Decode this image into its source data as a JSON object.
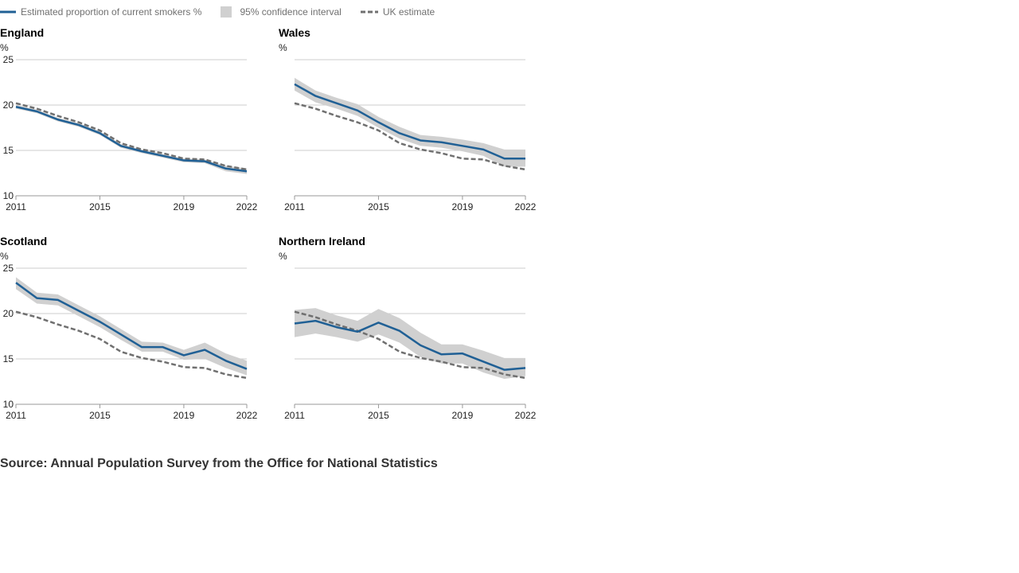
{
  "legend": {
    "estimate_label": "Estimated proportion of current smokers %",
    "ci_label": "95% confidence interval",
    "uk_label": "UK estimate"
  },
  "colors": {
    "estimate": "#206095",
    "ci": "#d0d0d0",
    "uk": "#707070",
    "grid": "#cccccc"
  },
  "source": "Source: Annual Population Survey from the Office for National Statistics",
  "chart_data": [
    {
      "type": "line",
      "title": "England",
      "ylabel": "%",
      "ylim": [
        10,
        25
      ],
      "yticks": [
        10,
        15,
        20,
        25
      ],
      "xlim": [
        2011,
        2022
      ],
      "xticks": [
        2011,
        2015,
        2019,
        2022
      ],
      "show_ytick_labels": true,
      "x": [
        2011,
        2012,
        2013,
        2014,
        2015,
        2016,
        2017,
        2018,
        2019,
        2020,
        2021,
        2022
      ],
      "series": [
        {
          "name": "Estimated proportion of current smokers %",
          "values": [
            19.8,
            19.3,
            18.4,
            17.8,
            16.9,
            15.5,
            14.9,
            14.4,
            13.9,
            13.8,
            13.0,
            12.7
          ]
        },
        {
          "name": "UK estimate",
          "values": [
            20.2,
            19.6,
            18.8,
            18.1,
            17.2,
            15.8,
            15.1,
            14.7,
            14.1,
            14.0,
            13.3,
            12.9
          ]
        }
      ],
      "ci": {
        "lower": [
          19.6,
          19.1,
          18.2,
          17.6,
          16.7,
          15.3,
          14.7,
          14.2,
          13.7,
          13.6,
          12.7,
          12.4
        ],
        "upper": [
          20.0,
          19.5,
          18.6,
          18.0,
          17.1,
          15.7,
          15.1,
          14.6,
          14.1,
          14.0,
          13.3,
          13.0
        ]
      }
    },
    {
      "type": "line",
      "title": "Wales",
      "ylabel": "%",
      "ylim": [
        10,
        25
      ],
      "yticks": [
        10,
        15,
        20,
        25
      ],
      "xlim": [
        2011,
        2022
      ],
      "xticks": [
        2011,
        2015,
        2019,
        2022
      ],
      "show_ytick_labels": false,
      "x": [
        2011,
        2012,
        2013,
        2014,
        2015,
        2016,
        2017,
        2018,
        2019,
        2020,
        2021,
        2022
      ],
      "series": [
        {
          "name": "Estimated proportion of current smokers %",
          "values": [
            22.3,
            21.0,
            20.2,
            19.4,
            18.1,
            16.9,
            16.1,
            15.9,
            15.5,
            15.1,
            14.1,
            14.1
          ]
        },
        {
          "name": "UK estimate",
          "values": [
            20.2,
            19.6,
            18.8,
            18.1,
            17.2,
            15.8,
            15.1,
            14.7,
            14.1,
            14.0,
            13.3,
            12.9
          ]
        }
      ],
      "ci": {
        "lower": [
          21.6,
          20.3,
          19.6,
          18.8,
          17.5,
          16.3,
          15.5,
          15.3,
          14.9,
          14.4,
          13.2,
          13.2
        ],
        "upper": [
          23.0,
          21.6,
          20.8,
          20.1,
          18.7,
          17.6,
          16.7,
          16.5,
          16.2,
          15.8,
          15.1,
          15.1
        ]
      }
    },
    {
      "type": "line",
      "title": "Scotland",
      "ylabel": "%",
      "ylim": [
        10,
        25
      ],
      "yticks": [
        10,
        15,
        20,
        25
      ],
      "xlim": [
        2011,
        2022
      ],
      "xticks": [
        2011,
        2015,
        2019,
        2022
      ],
      "show_ytick_labels": true,
      "x": [
        2011,
        2012,
        2013,
        2014,
        2015,
        2016,
        2017,
        2018,
        2019,
        2020,
        2021,
        2022
      ],
      "series": [
        {
          "name": "Estimated proportion of current smokers %",
          "values": [
            23.4,
            21.7,
            21.5,
            20.3,
            19.1,
            17.7,
            16.3,
            16.3,
            15.4,
            16.0,
            14.8,
            13.9
          ]
        },
        {
          "name": "UK estimate",
          "values": [
            20.2,
            19.6,
            18.8,
            18.1,
            17.2,
            15.8,
            15.1,
            14.7,
            14.1,
            14.0,
            13.3,
            12.9
          ]
        }
      ],
      "ci": {
        "lower": [
          22.7,
          21.1,
          20.9,
          19.7,
          18.5,
          17.1,
          15.8,
          15.8,
          14.9,
          15.0,
          14.0,
          13.2
        ],
        "upper": [
          24.0,
          22.3,
          22.1,
          20.9,
          19.7,
          18.3,
          16.9,
          16.8,
          16.0,
          16.8,
          15.6,
          14.8
        ]
      }
    },
    {
      "type": "line",
      "title": "Northern Ireland",
      "ylabel": "%",
      "ylim": [
        10,
        25
      ],
      "yticks": [
        10,
        15,
        20,
        25
      ],
      "xlim": [
        2011,
        2022
      ],
      "xticks": [
        2011,
        2015,
        2019,
        2022
      ],
      "show_ytick_labels": false,
      "x": [
        2011,
        2012,
        2013,
        2014,
        2015,
        2016,
        2017,
        2018,
        2019,
        2020,
        2021,
        2022
      ],
      "series": [
        {
          "name": "Estimated proportion of current smokers %",
          "values": [
            18.9,
            19.2,
            18.5,
            18.0,
            19.0,
            18.1,
            16.5,
            15.5,
            15.6,
            14.7,
            13.8,
            14.0
          ]
        },
        {
          "name": "UK estimate",
          "values": [
            20.2,
            19.6,
            18.8,
            18.1,
            17.2,
            15.8,
            15.1,
            14.7,
            14.1,
            14.0,
            13.3,
            12.9
          ]
        }
      ],
      "ci": {
        "lower": [
          17.4,
          17.8,
          17.4,
          16.9,
          17.7,
          16.8,
          15.2,
          14.5,
          14.5,
          13.5,
          12.8,
          13.1
        ],
        "upper": [
          20.4,
          20.6,
          19.8,
          19.2,
          20.5,
          19.5,
          17.9,
          16.6,
          16.6,
          15.9,
          15.1,
          15.1
        ]
      }
    }
  ]
}
